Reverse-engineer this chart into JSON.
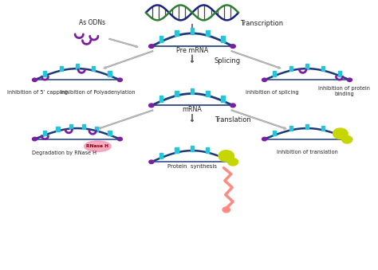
{
  "bg_color": "#ffffff",
  "dna_color1": "#1a237e",
  "dna_color2": "#2e7d32",
  "mrna_strand_color": "#1a3a7a",
  "mrna_block_color": "#26c6da",
  "mrna_end_color": "#7b1fa2",
  "asodn_color": "#7b1fa2",
  "rnase_color": "#f48fb1",
  "ribosome_color": "#c6d600",
  "protein_color": "#ff8a80",
  "arrow_color": "#888888",
  "text_color": "#222222",
  "label_fontsize": 5.5,
  "texts": {
    "as_odns": "As ODNs",
    "transcription": "Transcription",
    "pre_mrna": "Pre mRNA",
    "splicing": "Splicing",
    "mrna": "mRNA",
    "translation": "Translation",
    "inhib_5cap": "Inhibition of 5’ capping",
    "inhib_polya": "Inhibition of Polyadenylation",
    "inhib_splicing": "Inhibition of splicing",
    "inhib_protein_bind": "Inhibition of protein\nbinding",
    "degrad_rnase": "Degradation by RNase H",
    "rnase_h": "RNase H",
    "inhib_translation": "Inhibition of translation",
    "protein_synth": "Protein  synthesis"
  }
}
